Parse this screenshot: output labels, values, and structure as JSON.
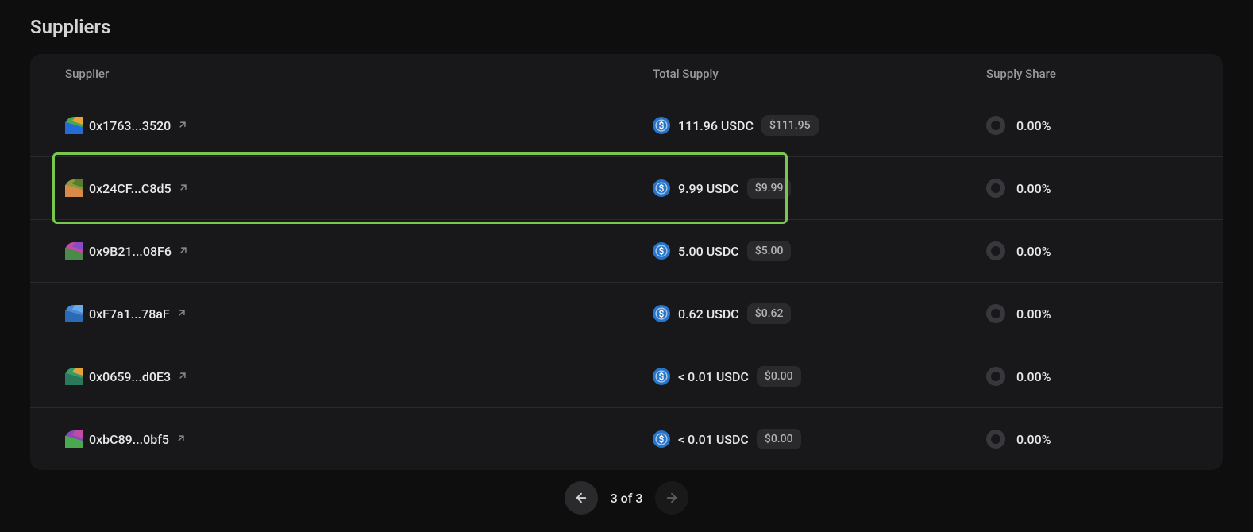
{
  "title": "Suppliers",
  "columns": {
    "supplier": "Supplier",
    "total_supply": "Total Supply",
    "supply_share": "Supply Share"
  },
  "rows": [
    {
      "address": "0x1763...3520",
      "jazzicon": {
        "bg": "#4aa84e",
        "p1": "#236bd6",
        "p2": "#e8a23c"
      },
      "highlighted": false,
      "supply_amount": "111.96 USDC",
      "supply_usd": "$111.95",
      "share": "0.00%"
    },
    {
      "address": "0x24CF...C8d5",
      "jazzicon": {
        "bg": "#8a9a3c",
        "p1": "#d98a4a",
        "p2": "#5a7a2c"
      },
      "highlighted": true,
      "supply_amount": "9.99 USDC",
      "supply_usd": "$9.99",
      "share": "0.00%"
    },
    {
      "address": "0x9B21...08F6",
      "jazzicon": {
        "bg": "#c44aa8",
        "p1": "#4a8a4a",
        "p2": "#8a4ac4"
      },
      "highlighted": false,
      "supply_amount": "5.00 USDC",
      "supply_usd": "$5.00",
      "share": "0.00%"
    },
    {
      "address": "0xF7a1...78aF",
      "jazzicon": {
        "bg": "#4a8ad6",
        "p1": "#2a6ab6",
        "p2": "#6aaae6"
      },
      "highlighted": false,
      "supply_amount": "0.62 USDC",
      "supply_usd": "$0.62",
      "share": "0.00%"
    },
    {
      "address": "0x0659...d0E3",
      "jazzicon": {
        "bg": "#3a9a6a",
        "p1": "#2a7a5a",
        "p2": "#e8a23c"
      },
      "highlighted": false,
      "supply_amount": "< 0.01 USDC",
      "supply_usd": "$0.00",
      "share": "0.00%"
    },
    {
      "address": "0xbC89...0bf5",
      "jazzicon": {
        "bg": "#8a4ab6",
        "p1": "#4aa84e",
        "p2": "#c44aa8"
      },
      "highlighted": false,
      "supply_amount": "< 0.01 USDC",
      "supply_usd": "$0.00",
      "share": "0.00%"
    }
  ],
  "token": {
    "symbol": "USDC",
    "bg": "#2775ca",
    "fg": "#ffffff"
  },
  "pagination": {
    "current": 3,
    "total": 3,
    "text": "3 of 3",
    "prev_enabled": true,
    "next_enabled": false
  },
  "colors": {
    "background": "#0e0e0f",
    "panel": "#18181a",
    "border": "#2a2a2c",
    "highlight": "#7ac74f",
    "text_primary": "#e8e8e8",
    "text_secondary": "#9a9a9e",
    "badge_bg": "#2a2a2c",
    "donut": "#38383c"
  }
}
